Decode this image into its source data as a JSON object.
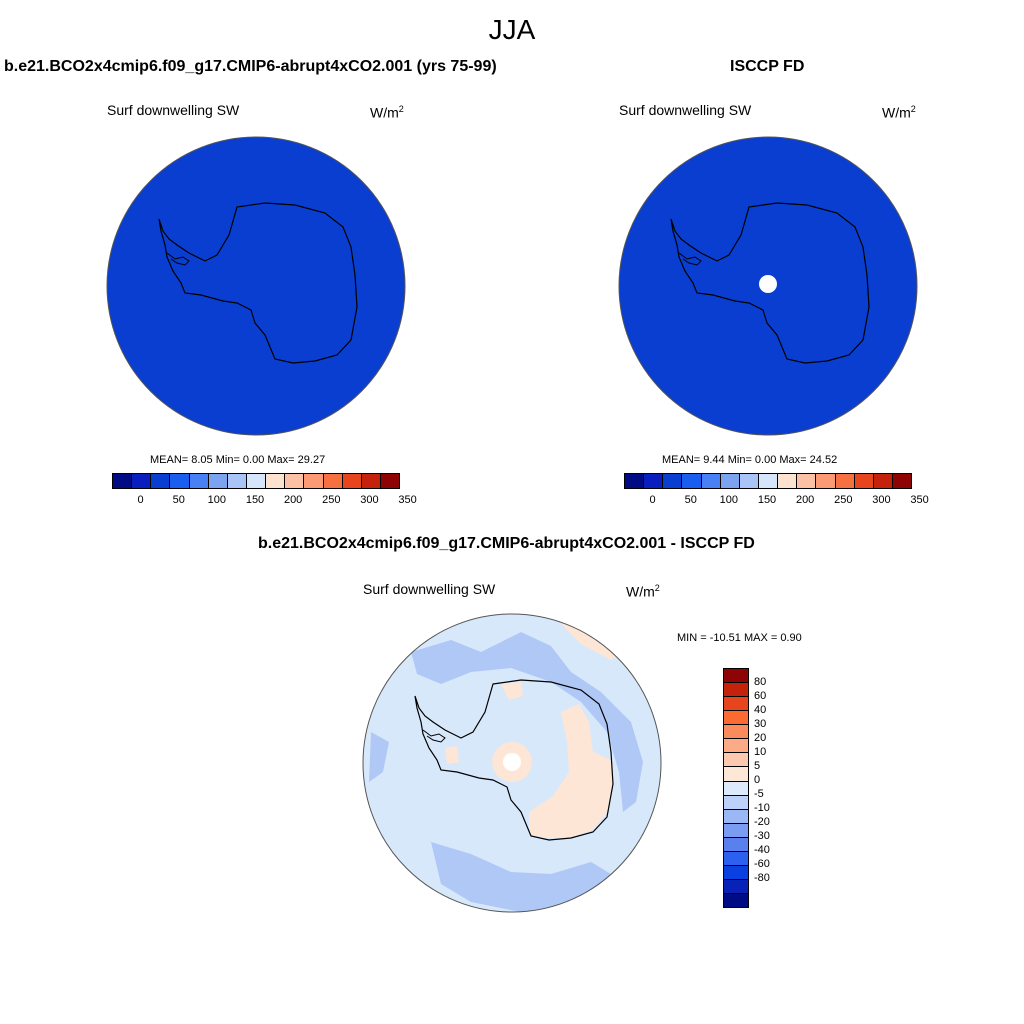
{
  "figure": {
    "season": "JJA"
  },
  "panels": [
    {
      "title": "b.e21.BCO2x4cmip6.f09_g17.CMIP6-abrupt4xCO2.001 (yrs 75-99)",
      "variable": "Surf downwelling SW",
      "units_base": "W/m",
      "units_exp": "2",
      "stats": "MEAN=   8.05  Min=   0.00  Max=  29.27",
      "fill_color": "#0a3ed0"
    },
    {
      "title": "ISCCP FD",
      "variable": "Surf downwelling SW",
      "units_base": "W/m",
      "units_exp": "2",
      "stats": "MEAN=   9.44  Min=   0.00  Max=  24.52",
      "fill_color": "#0a3ed0"
    },
    {
      "title": "b.e21.BCO2x4cmip6.f09_g17.CMIP6-abrupt4xCO2.001 - ISCCP FD",
      "variable": "Surf downwelling SW",
      "units_base": "W/m",
      "units_exp": "2",
      "stats": "MIN = -10.51 MAX =   0.90"
    }
  ],
  "colorbar_abs": {
    "colors": [
      "#000c83",
      "#0a1ec0",
      "#0a3ed0",
      "#1a5ef0",
      "#4a80f5",
      "#7ca3f0",
      "#a9c4f6",
      "#d5e6fb",
      "#fde2cf",
      "#fcc0a4",
      "#fc9a76",
      "#f57142",
      "#e8441e",
      "#c4220a",
      "#8e0303"
    ],
    "ticks": [
      "0",
      "50",
      "100",
      "150",
      "200",
      "250",
      "300",
      "350"
    ]
  },
  "colorbar_diff": {
    "colors": [
      "#8e0303",
      "#c4220a",
      "#e8441e",
      "#fb6a30",
      "#fb8b5a",
      "#fcab86",
      "#fdc8b0",
      "#fde8d8",
      "#dceafb",
      "#bcd2f8",
      "#9ab8f4",
      "#7a9cf2",
      "#5a80f0",
      "#2e60f0",
      "#0a40e0",
      "#0822b8",
      "#000c83"
    ],
    "ticks": [
      "80",
      "60",
      "40",
      "30",
      "20",
      "10",
      "5",
      "0",
      "-5",
      "-10",
      "-20",
      "-30",
      "-40",
      "-60",
      "-80"
    ]
  },
  "diff_field_colors": {
    "background": "#d8e8fb",
    "negative_band": "#b0c8f6",
    "positive_patch": "#fde6d6"
  }
}
